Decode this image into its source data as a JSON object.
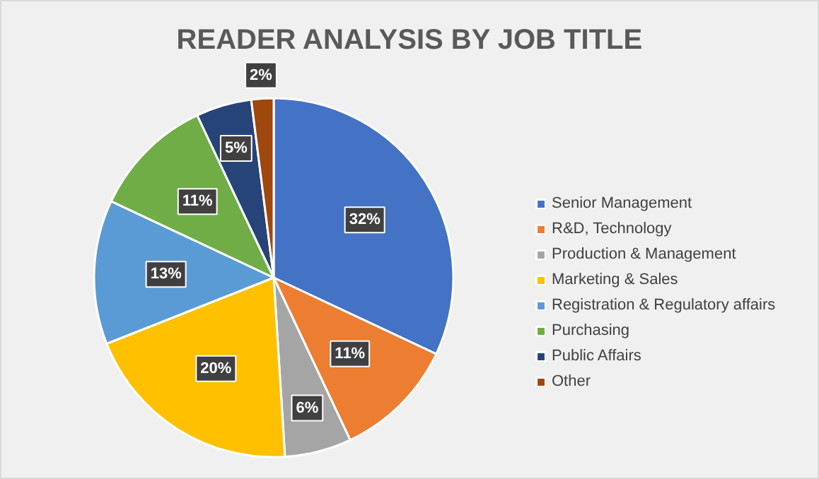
{
  "chart_data": {
    "type": "pie",
    "title": "READER ANALYSIS BY JOB TITLE",
    "categories": [
      "Senior Management",
      "R&D, Technology",
      "Production & Management",
      "Marketing & Sales",
      "Registration & Regulatory affairs",
      "Purchasing",
      "Public Affairs",
      "Other"
    ],
    "values": [
      32,
      11,
      6,
      20,
      13,
      11,
      5,
      2
    ],
    "colors": [
      "#4472c4",
      "#ed7d31",
      "#a5a5a5",
      "#ffc000",
      "#5b9bd5",
      "#70ad47",
      "#264478",
      "#9e480e"
    ],
    "value_labels": [
      "32%",
      "11%",
      "6%",
      "20%",
      "13%",
      "11%",
      "5%",
      "2%"
    ],
    "legend": "right"
  }
}
